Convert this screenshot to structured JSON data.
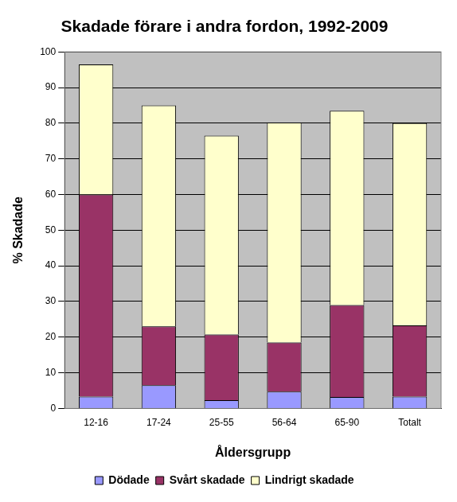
{
  "chart_data": {
    "type": "bar",
    "title": "Skadade förare i andra fordon, 1992-2009",
    "x_label": "Åldersgrupp",
    "y_label": "% Skadade",
    "categories": [
      "12-16",
      "17-24",
      "25-55",
      "56-64",
      "65-90",
      "Totalt"
    ],
    "series": [
      {
        "name": "Dödade",
        "color": "#9999ff",
        "values": [
          3.3,
          6.5,
          2.3,
          4.7,
          3.2,
          3.3
        ]
      },
      {
        "name": "Svårt skadade",
        "color": "#993366",
        "values": [
          56.7,
          16.5,
          18.4,
          13.8,
          25.8,
          20.0
        ]
      },
      {
        "name": "Lindrigt skadade",
        "color": "#ffffcc",
        "values": [
          36.5,
          62.0,
          55.8,
          61.7,
          54.5,
          56.7
        ]
      }
    ],
    "ylim": [
      0,
      100
    ],
    "yticks": [
      0,
      10,
      20,
      30,
      40,
      50,
      60,
      70,
      80,
      90,
      100
    ],
    "grid": true,
    "stacked": true,
    "legend": "bottom"
  }
}
